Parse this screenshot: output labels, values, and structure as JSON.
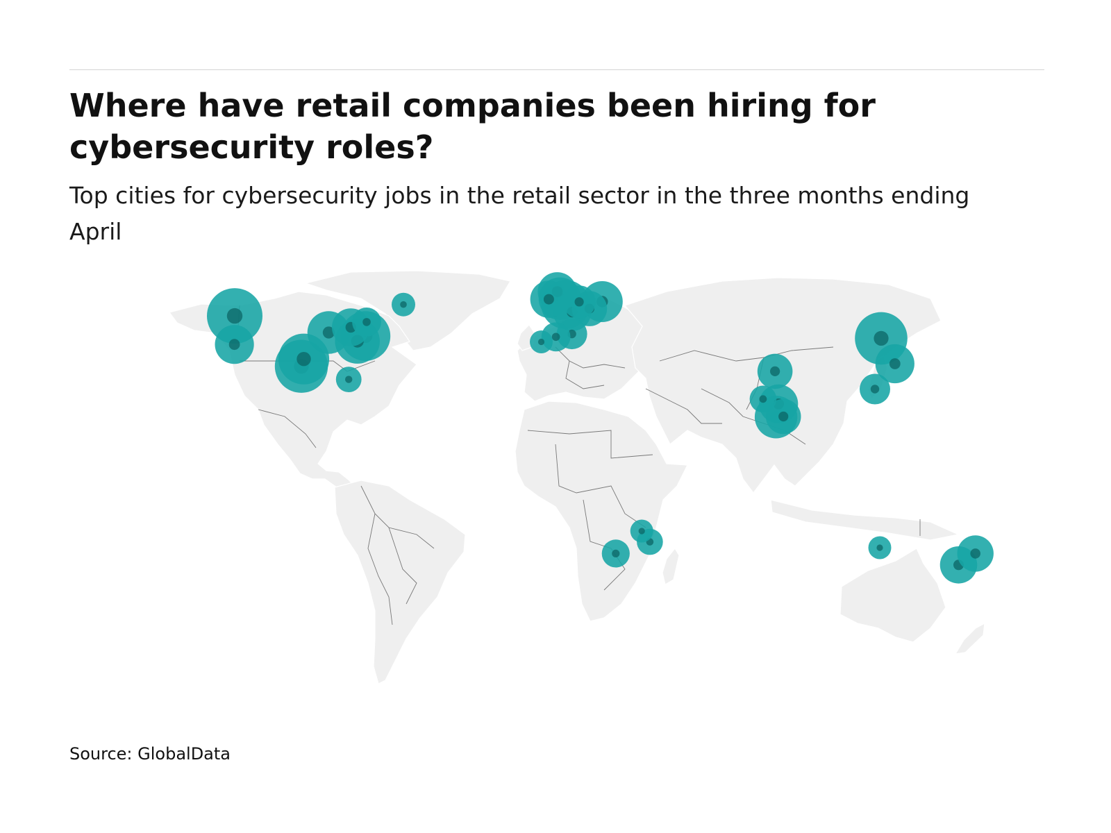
{
  "header": {
    "title": "Where have retail companies been hiring for cybersecurity roles?",
    "subtitle": "Top cities for cybersecurity jobs in the retail sector in the three months ending April"
  },
  "footer": {
    "source": "Source: GlobalData"
  },
  "colors": {
    "bubble": "#17a5a5",
    "bubble_inner": "#0c6666",
    "land": "#efefef",
    "border": "#777777",
    "rule": "#d4d4d4"
  },
  "map_data": {
    "projection": "equirectangular-like world map",
    "encoding": "bubble size = relative number of cybersecurity job postings (unlabelled)",
    "cities": [
      {
        "lon": -122.3,
        "lat": 47.6,
        "size": 1.0
      },
      {
        "lon": -122.4,
        "lat": 37.8,
        "size": 0.45
      },
      {
        "lon": -97.7,
        "lat": 30.3,
        "size": 0.9
      },
      {
        "lon": -96.8,
        "lat": 32.8,
        "size": 0.82
      },
      {
        "lon": -87.6,
        "lat": 41.9,
        "size": 0.55
      },
      {
        "lon": -80.2,
        "lat": 25.8,
        "size": 0.16
      },
      {
        "lon": -74.0,
        "lat": 40.7,
        "size": 0.78
      },
      {
        "lon": -77.0,
        "lat": 38.9,
        "size": 0.62
      },
      {
        "lon": -79.4,
        "lat": 43.7,
        "size": 0.42
      },
      {
        "lon": -73.6,
        "lat": 45.5,
        "size": 0.22
      },
      {
        "lon": -60.0,
        "lat": 51.5,
        "size": 0.13
      },
      {
        "lon": -0.1,
        "lat": 51.5,
        "size": 0.75
      },
      {
        "lon": -2.2,
        "lat": 53.5,
        "size": 0.55
      },
      {
        "lon": -3.2,
        "lat": 55.9,
        "size": 0.45
      },
      {
        "lon": -6.3,
        "lat": 53.3,
        "size": 0.4
      },
      {
        "lon": 2.3,
        "lat": 48.9,
        "size": 0.42
      },
      {
        "lon": 4.9,
        "lat": 52.4,
        "size": 0.3
      },
      {
        "lon": 8.7,
        "lat": 50.1,
        "size": 0.35
      },
      {
        "lon": 13.4,
        "lat": 52.5,
        "size": 0.5
      },
      {
        "lon": -3.7,
        "lat": 40.4,
        "size": 0.22
      },
      {
        "lon": 2.2,
        "lat": 41.4,
        "size": 0.25
      },
      {
        "lon": -9.1,
        "lat": 38.7,
        "size": 0.12
      },
      {
        "lon": 116.4,
        "lat": 39.9,
        "size": 0.88
      },
      {
        "lon": 121.5,
        "lat": 31.2,
        "size": 0.45
      },
      {
        "lon": 114.1,
        "lat": 22.5,
        "size": 0.25
      },
      {
        "lon": 72.8,
        "lat": 19.1,
        "size": 0.18
      },
      {
        "lon": 77.2,
        "lat": 28.6,
        "size": 0.35
      },
      {
        "lon": 78.5,
        "lat": 17.4,
        "size": 0.45
      },
      {
        "lon": 77.6,
        "lat": 12.9,
        "size": 0.55
      },
      {
        "lon": 80.3,
        "lat": 13.1,
        "size": 0.35
      },
      {
        "lon": 28.0,
        "lat": -26.2,
        "size": 0.12
      },
      {
        "lon": 31.0,
        "lat": -29.9,
        "size": 0.17
      },
      {
        "lon": 18.4,
        "lat": -33.9,
        "size": 0.2
      },
      {
        "lon": 115.9,
        "lat": -31.9,
        "size": 0.12
      },
      {
        "lon": 151.2,
        "lat": -33.9,
        "size": 0.38
      },
      {
        "lon": 145.0,
        "lat": -37.8,
        "size": 0.4
      }
    ]
  }
}
